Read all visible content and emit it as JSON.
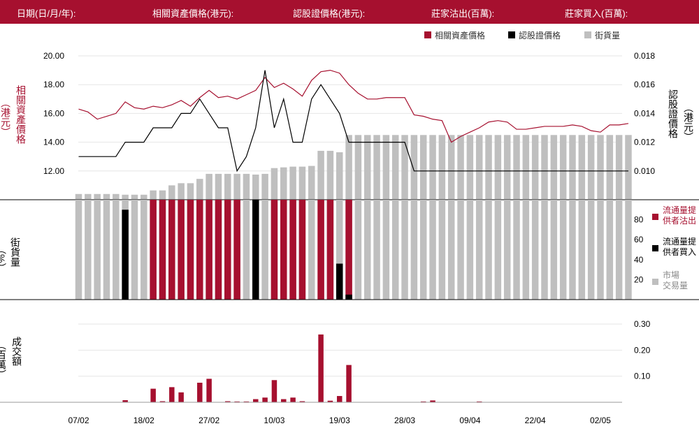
{
  "header": {
    "date_label": "日期(日/月/年):",
    "underlying_label": "相關資產價格(港元):",
    "warrant_label": "認股證價格(港元):",
    "mm_sell_label": "莊家沽出(百萬):",
    "mm_buy_label": "莊家買入(百萬):"
  },
  "colors": {
    "crimson": "#a6102f",
    "black": "#000000",
    "gray": "#bfbfbf",
    "grid": "#e6e6e6"
  },
  "x_tick_labels": [
    "07/02",
    "18/02",
    "27/02",
    "10/03",
    "19/03",
    "28/03",
    "09/04",
    "22/04",
    "02/05"
  ],
  "x_tick_index": [
    0,
    7,
    14,
    21,
    28,
    35,
    42,
    49,
    56
  ],
  "chart_data": [
    {
      "type": "line",
      "legend": [
        "相關資產價格",
        "認股證價格",
        "街貨量"
      ],
      "ylabel_left": "相關資產價格\n（港元）",
      "ylabel_right": "認股證價格\n（港元）",
      "yticks_left": [
        "12.00",
        "14.00",
        "16.00",
        "18.00",
        "20.00"
      ],
      "yticks_left_values": [
        12,
        14,
        16,
        18,
        20
      ],
      "yticks_right": [
        "0.010",
        "0.012",
        "0.014",
        "0.016",
        "0.018"
      ],
      "yticks_right_values": [
        0.01,
        0.012,
        0.014,
        0.016,
        0.018
      ],
      "ylim_left": [
        10.0,
        20.0
      ],
      "ylim_right": [
        0.008,
        0.018
      ],
      "series": [
        {
          "name": "相關資產價格",
          "axis": "left",
          "values": [
            16.3,
            16.1,
            15.6,
            15.8,
            16.0,
            16.8,
            16.4,
            16.3,
            16.5,
            16.4,
            16.6,
            16.9,
            16.5,
            17.1,
            17.6,
            17.1,
            17.2,
            17.0,
            17.3,
            17.6,
            18.5,
            17.8,
            18.1,
            17.7,
            17.2,
            18.3,
            18.9,
            19.0,
            18.8,
            18.0,
            17.4,
            17.0,
            17.0,
            17.1,
            17.1,
            17.1,
            15.9,
            15.8,
            15.6,
            15.5,
            14.0,
            14.4,
            14.7,
            15.0,
            15.4,
            15.5,
            15.4,
            14.9,
            14.9,
            15.0,
            15.1,
            15.1,
            15.1,
            15.2,
            15.1,
            14.8,
            14.7,
            15.2,
            15.2,
            15.3
          ]
        },
        {
          "name": "認股證價格",
          "axis": "right",
          "values": [
            0.011,
            0.011,
            0.011,
            0.011,
            0.011,
            0.012,
            0.012,
            0.012,
            0.013,
            0.013,
            0.013,
            0.014,
            0.014,
            0.015,
            0.014,
            0.013,
            0.013,
            0.01,
            0.011,
            0.013,
            0.017,
            0.013,
            0.015,
            0.012,
            0.012,
            0.015,
            0.016,
            0.015,
            0.014,
            0.012,
            0.012,
            0.012,
            0.012,
            0.012,
            0.012,
            0.012,
            0.01,
            0.01,
            0.01,
            0.01,
            0.01,
            0.01,
            0.01,
            0.01,
            0.01,
            0.01,
            0.01,
            0.01,
            0.01,
            0.01,
            0.01,
            0.01,
            0.01,
            0.01,
            0.01,
            0.01,
            0.01,
            0.01,
            0.01,
            0.01
          ]
        }
      ],
      "outstanding_bars_pct": [
        4,
        4,
        4,
        4,
        4,
        3.5,
        3.5,
        3.5,
        6.5,
        6.5,
        10,
        11.5,
        11.5,
        14.5,
        18,
        18,
        18,
        18,
        18,
        17.5,
        18,
        22,
        22.5,
        23,
        23,
        23.5,
        34,
        34,
        33,
        45,
        45,
        45,
        45,
        45,
        45,
        45,
        45,
        45,
        45,
        45,
        45,
        45,
        45,
        45,
        45,
        45,
        45,
        45,
        45,
        45,
        45,
        45,
        45,
        45,
        45,
        45,
        45,
        45,
        45,
        45
      ],
      "outstanding_bars_ylim": [
        0,
        100
      ]
    },
    {
      "type": "bar",
      "legend": [
        "流通量提供者沽出",
        "流通量提供者買入",
        "市場交易量"
      ],
      "ylabel": "街貨量\n（%）",
      "yticks": [
        "20",
        "40",
        "60",
        "80"
      ],
      "yticks_values": [
        20,
        40,
        60,
        80
      ],
      "ylim": [
        0,
        100
      ],
      "series": [
        {
          "name": "流通量提供者沽出",
          "values": [
            0,
            0,
            0,
            0,
            0,
            0,
            0,
            0,
            100,
            100,
            100,
            100,
            100,
            100,
            100,
            100,
            100,
            100,
            0,
            0,
            0,
            100,
            100,
            100,
            100,
            0,
            100,
            100,
            0,
            100,
            0,
            0,
            0,
            0,
            0,
            0,
            0,
            0,
            0,
            0,
            0,
            0,
            0,
            0,
            0,
            0,
            0,
            0,
            0,
            0,
            0,
            0,
            0,
            0,
            0,
            0,
            0,
            0,
            0,
            0
          ]
        },
        {
          "name": "流通量提供者買入",
          "values": [
            0,
            0,
            0,
            0,
            0,
            90,
            0,
            0,
            0,
            0,
            0,
            0,
            0,
            0,
            0,
            0,
            0,
            0,
            0,
            100,
            0,
            0,
            0,
            0,
            0,
            0,
            0,
            0,
            36,
            5,
            0,
            0,
            0,
            0,
            0,
            0,
            0,
            0,
            0,
            0,
            0,
            0,
            0,
            0,
            0,
            0,
            0,
            0,
            0,
            0,
            0,
            0,
            0,
            0,
            0,
            0,
            0,
            0,
            0,
            0
          ]
        },
        {
          "name": "市場交易量",
          "values": [
            100,
            100,
            100,
            100,
            100,
            100,
            100,
            100,
            100,
            100,
            100,
            100,
            100,
            100,
            100,
            100,
            100,
            100,
            100,
            100,
            100,
            100,
            100,
            100,
            100,
            100,
            100,
            100,
            100,
            100,
            100,
            100,
            100,
            100,
            100,
            100,
            100,
            100,
            100,
            100,
            100,
            100,
            100,
            100,
            100,
            100,
            100,
            100,
            100,
            100,
            100,
            100,
            100,
            100,
            100,
            100,
            100,
            100,
            100,
            100
          ]
        }
      ]
    },
    {
      "type": "bar",
      "ylabel": "成交額\n（百萬）",
      "yticks": [
        "0.10",
        "0.20",
        "0.30"
      ],
      "yticks_values": [
        0.1,
        0.2,
        0.3
      ],
      "ylim": [
        0,
        0.3
      ],
      "series": [
        {
          "name": "成交額",
          "values": [
            0,
            0,
            0,
            0,
            0,
            0.008,
            0,
            0,
            0.052,
            0.004,
            0.058,
            0.038,
            0,
            0.075,
            0.09,
            0,
            0.004,
            0.003,
            0.003,
            0.012,
            0.018,
            0.085,
            0.012,
            0.018,
            0.004,
            0,
            0.26,
            0.006,
            0.024,
            0.143,
            0,
            0,
            0,
            0,
            0,
            0,
            0,
            0.003,
            0.007,
            0,
            0,
            0,
            0,
            0.003,
            0,
            0,
            0,
            0,
            0,
            0,
            0,
            0,
            0,
            0,
            0,
            0,
            0,
            0,
            0,
            0
          ]
        }
      ]
    }
  ]
}
